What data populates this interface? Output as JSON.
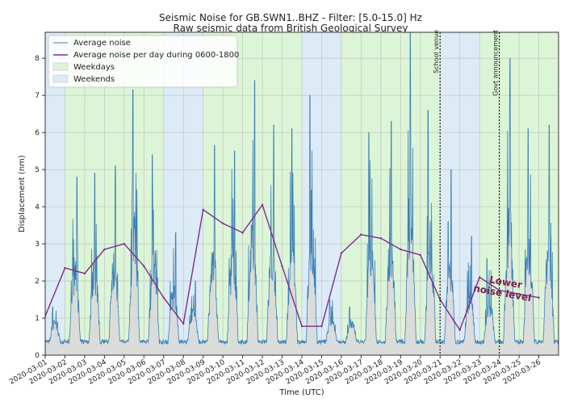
{
  "chart_data": {
    "type": "line",
    "title": "Seismic Noise for GB.SWN1..BHZ - Filter: [5.0-15.0] Hz",
    "subtitle": "Raw seismic data from British Geological Survey",
    "xlabel": "Time (UTC)",
    "ylabel": "Displacement (nm)",
    "ylim": [
      0,
      8.7
    ],
    "yticks": [
      0,
      1,
      2,
      3,
      4,
      5,
      6,
      7,
      8
    ],
    "xlim": [
      "2020-03-01",
      "2020-03-27"
    ],
    "xticks": [
      "2020-03-01",
      "2020-03-02",
      "2020-03-03",
      "2020-03-04",
      "2020-03-05",
      "2020-03-06",
      "2020-03-07",
      "2020-03-08",
      "2020-03-09",
      "2020-03-10",
      "2020-03-11",
      "2020-03-12",
      "2020-03-13",
      "2020-03-14",
      "2020-03-15",
      "2020-03-16",
      "2020-03-17",
      "2020-03-18",
      "2020-03-19",
      "2020-03-20",
      "2020-03-21",
      "2020-03-22",
      "2020-03-23",
      "2020-03-24",
      "2020-03-25",
      "2020-03-26"
    ],
    "grid": true,
    "legend_position": "top-left",
    "legend": [
      {
        "label": "Average noise",
        "kind": "line",
        "color": "#3a7fb5"
      },
      {
        "label": "Average noise per day during 0600-1800",
        "kind": "line",
        "color": "#7b2d8e"
      },
      {
        "label": "Weekdays",
        "kind": "patch",
        "color": "#dcf5d6"
      },
      {
        "label": "Weekends",
        "kind": "patch",
        "color": "#dcebf5"
      }
    ],
    "weekends": [
      [
        "2020-03-01",
        "2020-03-02"
      ],
      [
        "2020-03-07",
        "2020-03-09"
      ],
      [
        "2020-03-14",
        "2020-03-16"
      ],
      [
        "2020-03-21",
        "2020-03-23"
      ]
    ],
    "series": [
      {
        "name": "Average noise per day during 0600-1800",
        "color": "#7b2d8e",
        "x": [
          "2020-03-01",
          "2020-03-02",
          "2020-03-03",
          "2020-03-04",
          "2020-03-05",
          "2020-03-06",
          "2020-03-07",
          "2020-03-08",
          "2020-03-09",
          "2020-03-10",
          "2020-03-11",
          "2020-03-12",
          "2020-03-13",
          "2020-03-14",
          "2020-03-15",
          "2020-03-16",
          "2020-03-17",
          "2020-03-18",
          "2020-03-19",
          "2020-03-20",
          "2020-03-21",
          "2020-03-22",
          "2020-03-23",
          "2020-03-24",
          "2020-03-25",
          "2020-03-26"
        ],
        "values": [
          1.05,
          2.35,
          2.2,
          2.85,
          3.0,
          2.4,
          1.55,
          0.85,
          3.92,
          3.55,
          3.3,
          4.05,
          2.4,
          0.78,
          0.78,
          2.75,
          3.25,
          3.15,
          2.85,
          2.7,
          1.5,
          0.68,
          2.1,
          1.75,
          1.65,
          1.55
        ]
      },
      {
        "name": "Average noise",
        "color": "#3a7fb5",
        "daily_peaks": [
          1.3,
          4.8,
          4.9,
          5.1,
          7.15,
          5.4,
          3.3,
          2.0,
          5.65,
          5.5,
          7.4,
          6.2,
          6.1,
          7.0,
          1.5,
          1.3,
          6.0,
          6.3,
          8.75,
          6.6,
          5.0,
          3.2,
          2.6,
          8.0,
          6.1,
          6.2,
          5.75
        ],
        "daily_minimum_approx": 0.3
      }
    ],
    "events": [
      {
        "date": "2020-03-21",
        "label": "School venue"
      },
      {
        "date": "2020-03-24",
        "label": "Govt announcement"
      }
    ],
    "annotation": "Lower noise level"
  }
}
